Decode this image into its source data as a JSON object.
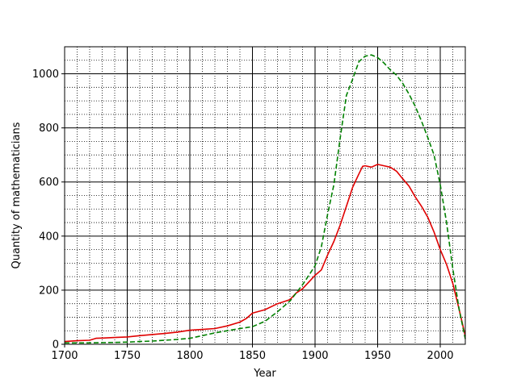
{
  "chart_data": {
    "type": "line",
    "title": "",
    "xlabel": "Year",
    "ylabel": "Quantity of mathematicians",
    "xlim": [
      1700,
      2020
    ],
    "ylim": [
      0,
      1100
    ],
    "xticks": [
      1700,
      1750,
      1800,
      1850,
      1900,
      1950,
      2000
    ],
    "yticks": [
      0,
      200,
      400,
      600,
      800,
      1000
    ],
    "grid": {
      "major": true,
      "minor": true,
      "minor_style": "dotted",
      "major_x_step": 50,
      "minor_x_step": 10,
      "major_y_step": 200,
      "minor_y_step": 50
    },
    "legend": "none",
    "series": [
      {
        "color": "#e00000",
        "style": "solid",
        "x": [
          1700,
          1710,
          1720,
          1725,
          1730,
          1740,
          1750,
          1760,
          1770,
          1780,
          1790,
          1800,
          1810,
          1820,
          1830,
          1840,
          1845,
          1850,
          1860,
          1870,
          1880,
          1885,
          1890,
          1895,
          1900,
          1905,
          1910,
          1915,
          1920,
          1925,
          1930,
          1935,
          1938,
          1940,
          1945,
          1950,
          1955,
          1960,
          1965,
          1970,
          1975,
          1980,
          1985,
          1990,
          1995,
          2000,
          2005,
          2010,
          2015,
          2020
        ],
        "y": [
          10,
          13,
          15,
          22,
          23,
          25,
          27,
          32,
          36,
          40,
          45,
          52,
          55,
          58,
          68,
          82,
          95,
          115,
          128,
          150,
          165,
          190,
          205,
          230,
          255,
          275,
          330,
          380,
          440,
          510,
          580,
          630,
          658,
          660,
          655,
          665,
          660,
          655,
          640,
          612,
          585,
          545,
          510,
          470,
          415,
          350,
          295,
          225,
          130,
          30
        ]
      },
      {
        "color": "#008000",
        "style": "dashed",
        "x": [
          1700,
          1710,
          1720,
          1730,
          1740,
          1750,
          1760,
          1770,
          1780,
          1790,
          1800,
          1810,
          1820,
          1830,
          1840,
          1850,
          1860,
          1870,
          1880,
          1890,
          1895,
          1900,
          1905,
          1910,
          1915,
          1920,
          1925,
          1930,
          1935,
          1940,
          1945,
          1950,
          1955,
          1960,
          1965,
          1970,
          1975,
          1980,
          1985,
          1990,
          1995,
          2000,
          2005,
          2010,
          2015,
          2020
        ],
        "y": [
          5,
          5,
          5,
          6,
          7,
          8,
          10,
          12,
          15,
          18,
          22,
          32,
          42,
          50,
          58,
          65,
          85,
          120,
          160,
          220,
          255,
          290,
          360,
          480,
          590,
          760,
          920,
          980,
          1045,
          1065,
          1070,
          1060,
          1040,
          1015,
          995,
          965,
          925,
          880,
          825,
          765,
          700,
          590,
          450,
          280,
          130,
          20
        ]
      }
    ]
  }
}
